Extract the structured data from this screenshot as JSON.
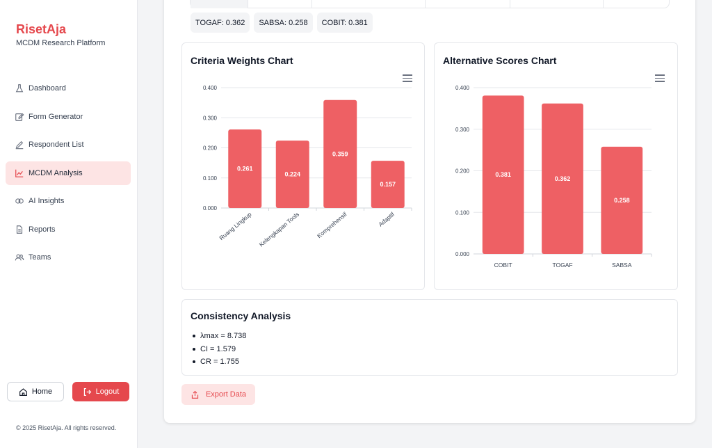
{
  "brand": {
    "name": "RisetAja",
    "subtitle": "MCDM Research Platform"
  },
  "sidebar": {
    "items": [
      {
        "label": "Dashboard",
        "icon": "flask-icon",
        "active": false
      },
      {
        "label": "Form Generator",
        "icon": "edit-icon",
        "active": false
      },
      {
        "label": "Respondent List",
        "icon": "pencil-icon",
        "active": false
      },
      {
        "label": "MCDM Analysis",
        "icon": "line-chart-icon",
        "active": true
      },
      {
        "label": "AI Insights",
        "icon": "brain-icon",
        "active": false
      },
      {
        "label": "Reports",
        "icon": "file-icon",
        "active": false
      },
      {
        "label": "Teams",
        "icon": "users-icon",
        "active": false
      }
    ],
    "home_label": "Home",
    "logout_label": "Logout",
    "footer": "© 2025 RisetAja. All rights reserved."
  },
  "scores_summary": [
    "TOGAF: 0.362",
    "SABSA: 0.258",
    "COBIT: 0.381"
  ],
  "criteria_panel": {
    "title": "Criteria Weights Chart"
  },
  "alternative_panel": {
    "title": "Alternative Scores Chart"
  },
  "consistency": {
    "title": "Consistency Analysis",
    "items": [
      "λmax = 8.738",
      "CI = 1.579",
      "CR = 1.755"
    ]
  },
  "export_label": "Export Data",
  "colors": {
    "accent": "#e5484d",
    "bar": "#ee6064",
    "active_bg": "#fde4e4"
  },
  "chart_data": [
    {
      "type": "bar",
      "title": "Criteria Weights Chart",
      "categories": [
        "Ruang Lingkup",
        "Kelengkapan Tools",
        "Komprehensif",
        "Adaptif"
      ],
      "values": [
        0.261,
        0.224,
        0.359,
        0.157
      ],
      "value_labels": [
        "0.261",
        "0.224",
        "0.359",
        "0.157"
      ],
      "ylim": [
        0,
        0.4
      ],
      "yticks": [
        "0.000",
        "0.100",
        "0.200",
        "0.300",
        "0.400"
      ],
      "grid": true,
      "xlabel_rotation": "diagonal"
    },
    {
      "type": "bar",
      "title": "Alternative Scores Chart",
      "categories": [
        "COBIT",
        "TOGAF",
        "SABSA"
      ],
      "values": [
        0.381,
        0.362,
        0.258
      ],
      "value_labels": [
        "0.381",
        "0.362",
        "0.258"
      ],
      "ylim": [
        0,
        0.4
      ],
      "yticks": [
        "0.000",
        "0.100",
        "0.200",
        "0.300",
        "0.400"
      ],
      "grid": true
    }
  ]
}
